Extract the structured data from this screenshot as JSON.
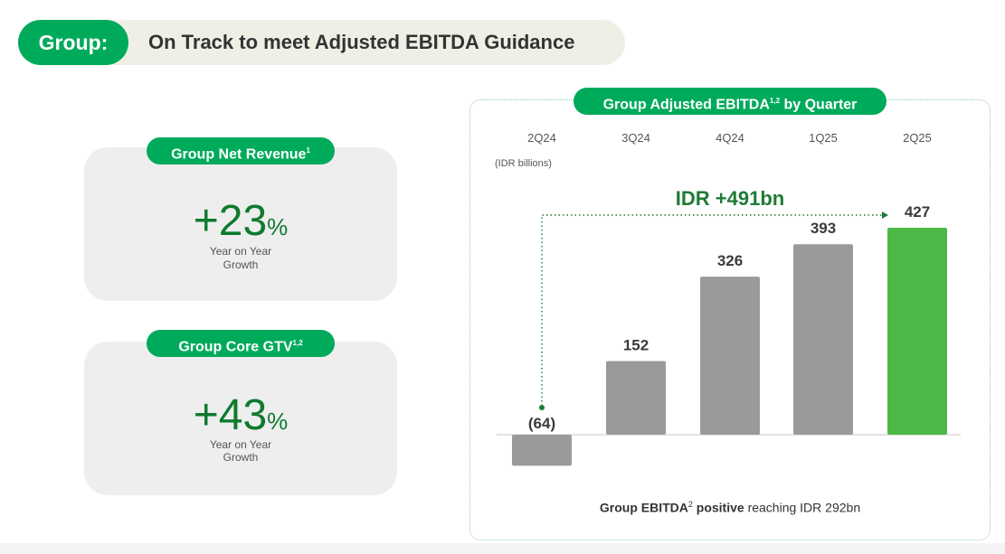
{
  "header": {
    "pill": "Group:",
    "title": "On Track to meet Adjusted EBITDA Guidance"
  },
  "metrics": [
    {
      "label": "Group Net Revenue",
      "label_sup": "1",
      "value": "+23",
      "unit": "%",
      "caption_line1": "Year on Year",
      "caption_line2": "Growth"
    },
    {
      "label": "Group Core GTV",
      "label_sup": "1,2",
      "value": "+43",
      "unit": "%",
      "caption_line1": "Year on Year",
      "caption_line2": "Growth"
    }
  ],
  "chart_card": {
    "title": "Group Adjusted EBITDA",
    "title_sup": "1,2",
    "title_suffix": " by Quarter",
    "footer_bold": "Group EBITDA",
    "footer_sup": "2",
    "footer_bold2": " positive",
    "footer_rest": " reaching IDR 292bn"
  },
  "chart_data": {
    "type": "bar",
    "categories": [
      "2Q24",
      "3Q24",
      "4Q24",
      "1Q25",
      "2Q25"
    ],
    "values": [
      -64,
      152,
      326,
      393,
      427
    ],
    "value_labels": [
      "(64)",
      "152",
      "326",
      "393",
      "427"
    ],
    "unit_label": "(IDR billions)",
    "annotation": "IDR +491bn",
    "ylim": [
      -64,
      427
    ],
    "colors": {
      "default": "#9a9a9a",
      "highlight": "#4db848",
      "annotation": "#1e7b34",
      "label": "#3b3b3b",
      "brand": "#00aa5b"
    },
    "highlight_index": 4
  }
}
